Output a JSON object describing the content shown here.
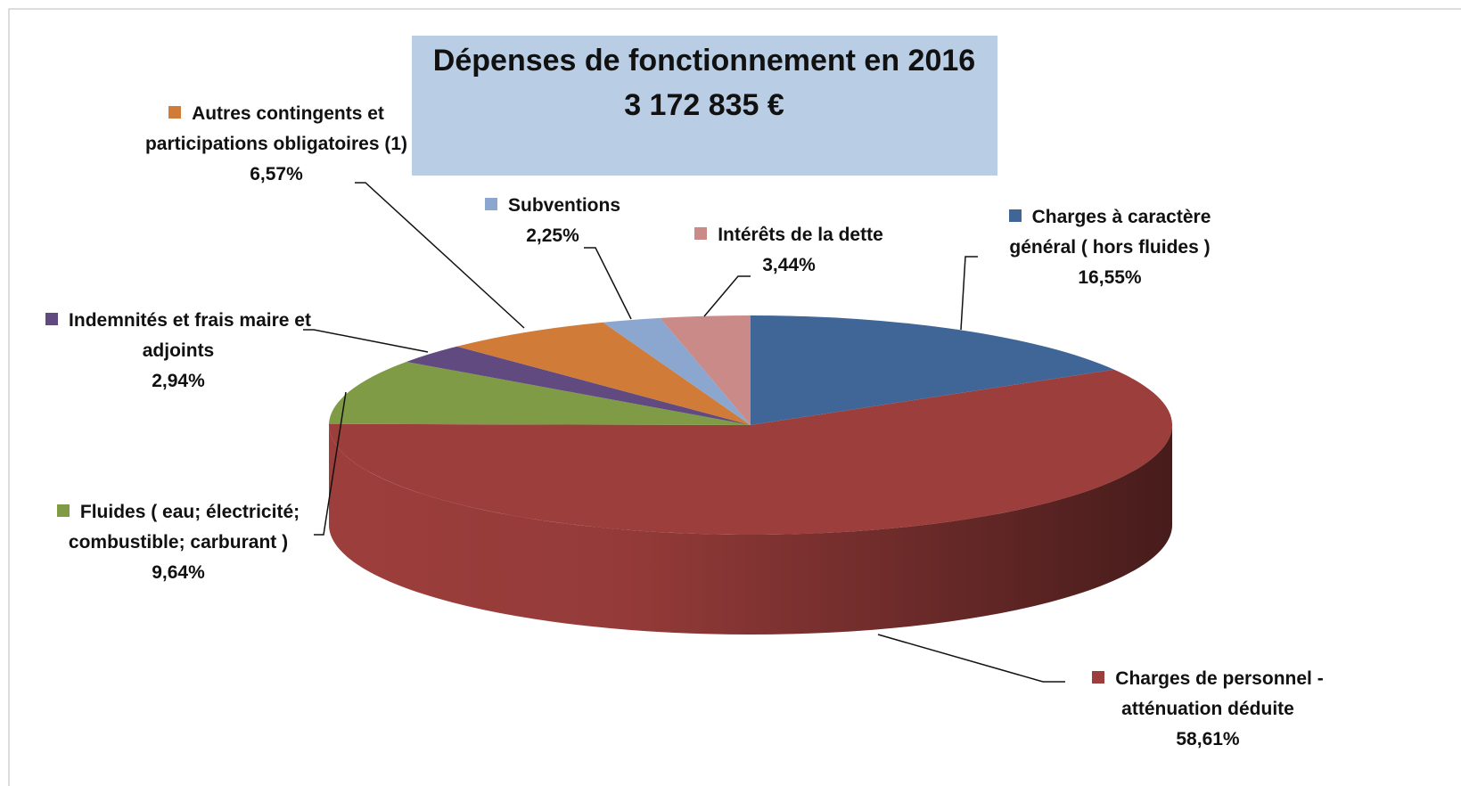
{
  "chart_data": {
    "type": "pie",
    "title": "Dépenses de fonctionnement en 2016",
    "subtitle": "3 172 835 €",
    "categories": [
      "Charges à caractère général ( hors fluides )",
      "Charges de personnel - atténuation déduite",
      "Fluides ( eau; électricité; combustible; carburant )",
      "Indemnités et frais maire et adjoints",
      "Autres contingents et participations obligatoires (1)",
      "Subventions",
      "Intérêts de la dette"
    ],
    "values": [
      16.55,
      58.61,
      9.64,
      2.94,
      6.57,
      2.25,
      3.44
    ],
    "value_labels": [
      "16,55%",
      "58,61%",
      "9,64%",
      "2,94%",
      "6,57%",
      "2,25%",
      "3,44%"
    ],
    "colors": [
      "#3f6696",
      "#9c3e3c",
      "#7f9b45",
      "#604a80",
      "#d07b38",
      "#8ba6cf",
      "#c98a88"
    ]
  }
}
